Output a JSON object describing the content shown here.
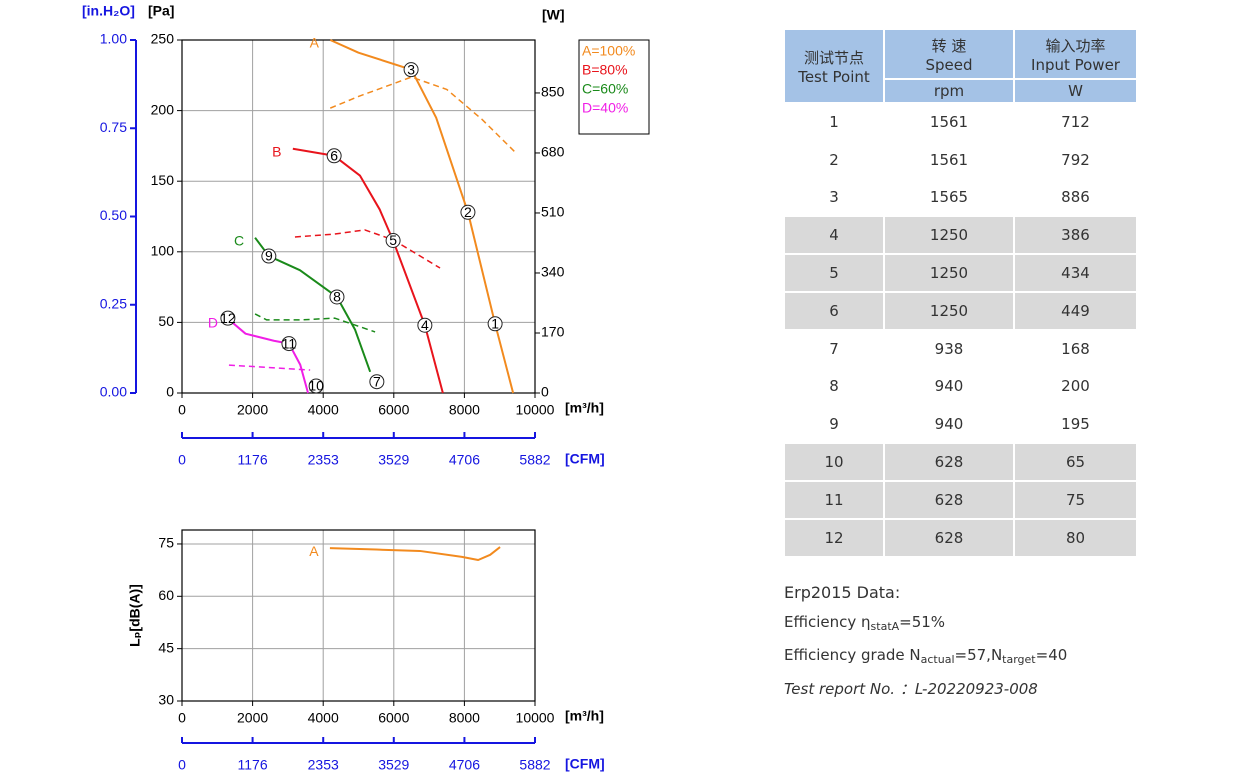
{
  "chart_data": [
    {
      "type": "line",
      "xlabel": "[m³/h]",
      "ylabel": "[Pa]",
      "y2label": "[W]",
      "y3label": "[in.H₂O]",
      "x2label": "[CFM]",
      "xlim": [
        0,
        10000
      ],
      "xticks": [
        0,
        2000,
        4000,
        6000,
        8000,
        10000
      ],
      "ylim": [
        0,
        250
      ],
      "yticks": [
        0,
        50,
        100,
        150,
        200,
        250
      ],
      "y2lim": [
        0,
        1000
      ],
      "y2ticks": [
        0,
        170,
        340,
        510,
        680,
        850
      ],
      "y3lim": [
        0,
        1
      ],
      "y3ticks": [
        {
          "value": 0,
          "label": "0.00"
        },
        0.25,
        {
          "value": 0.5,
          "label": "0.50"
        },
        0.75,
        {
          "value": 1,
          "label": "1.00"
        }
      ],
      "x2lim": [
        0,
        5882
      ],
      "x2ticks": [
        0,
        1176,
        2353,
        3529,
        4706,
        5882
      ],
      "grid": true,
      "legend": "right",
      "series": [
        {
          "name": "A=100%",
          "curve_label": "A",
          "color": "#f28a1e",
          "x": [
            4200,
            5000,
            6500,
            7200,
            8100,
            8870,
            9380
          ],
          "values": [
            250,
            241,
            229,
            195,
            128,
            49,
            0
          ]
        },
        {
          "name": "B=80%",
          "curve_label": "B",
          "color": "#e8141c",
          "x": [
            3140,
            4310,
            5040,
            5600,
            5980,
            6880,
            7390
          ],
          "values": [
            173,
            168,
            154,
            130,
            108,
            48,
            0
          ]
        },
        {
          "name": "C=60%",
          "curve_label": "C",
          "color": "#1a8a1a",
          "x": [
            2070,
            2460,
            3340,
            4390,
            4900,
            5330
          ],
          "values": [
            110,
            97,
            87,
            68,
            45,
            15
          ]
        },
        {
          "name": "D=40%",
          "curve_label": "D",
          "color": "#f01ee6",
          "x": [
            1330,
            1800,
            2600,
            3030,
            3350,
            3570
          ],
          "values": [
            52,
            42,
            37,
            35,
            20,
            0
          ]
        },
        {
          "axis": "y2",
          "dashed": true,
          "color": "#f28a1e",
          "x": [
            4200,
            5000,
            6500,
            7500,
            8500,
            9430
          ],
          "values": [
            807,
            840,
            895,
            860,
            775,
            683
          ]
        },
        {
          "axis": "y2",
          "dashed": true,
          "color": "#e8141c",
          "x": [
            3200,
            4300,
            5180,
            5980,
            7310
          ],
          "values": [
            442,
            450,
            462,
            434,
            354
          ]
        },
        {
          "axis": "y2",
          "dashed": true,
          "color": "#1a8a1a",
          "x": [
            2070,
            2400,
            3340,
            4330,
            5470
          ],
          "values": [
            224,
            207,
            207,
            212,
            173
          ]
        },
        {
          "axis": "y2",
          "dashed": true,
          "color": "#f01ee6",
          "x": [
            1330,
            2500,
            3630
          ],
          "values": [
            79,
            72,
            65
          ]
        }
      ],
      "points": [
        {
          "label": "1",
          "x": 8870,
          "y": 49
        },
        {
          "label": "2",
          "x": 8100,
          "y": 128
        },
        {
          "label": "3",
          "x": 6490,
          "y": 229
        },
        {
          "label": "4",
          "x": 6880,
          "y": 48
        },
        {
          "label": "5",
          "x": 5980,
          "y": 108
        },
        {
          "label": "6",
          "x": 4310,
          "y": 168
        },
        {
          "label": "7",
          "x": 5520,
          "y": 8
        },
        {
          "label": "8",
          "x": 4390,
          "y": 68
        },
        {
          "label": "9",
          "x": 2460,
          "y": 97
        },
        {
          "label": "10",
          "x": 3800,
          "y": 5
        },
        {
          "label": "11",
          "x": 3030,
          "y": 35
        },
        {
          "label": "12",
          "x": 1300,
          "y": 53
        }
      ]
    },
    {
      "type": "line",
      "xlabel": "[m³/h]",
      "ylabel": "Lₚ[dB(A)]",
      "x2label": "[CFM]",
      "xlim": [
        0,
        10000
      ],
      "xticks": [
        0,
        2000,
        4000,
        6000,
        8000,
        10000
      ],
      "ylim": [
        30,
        79
      ],
      "yticks": [
        30,
        45,
        60,
        75
      ],
      "x2lim": [
        0,
        5882
      ],
      "x2ticks": [
        0,
        1176,
        2353,
        3529,
        4706,
        5882
      ],
      "grid": true,
      "series": [
        {
          "curve_label": "A",
          "color": "#f28a1e",
          "x": [
            4190,
            5500,
            6740,
            7930,
            8390,
            8730,
            9010
          ],
          "values": [
            73.8,
            73.4,
            73.0,
            71.3,
            70.4,
            71.9,
            74.1
          ]
        }
      ]
    }
  ],
  "table": {
    "header": [
      [
        "测试节点",
        "Test Point"
      ],
      [
        "转 速",
        "Speed"
      ],
      [
        "输入功率",
        "Input Power"
      ]
    ],
    "units": [
      "rpm",
      "W"
    ],
    "rows": [
      {
        "cells": [
          1,
          1561,
          712
        ],
        "shaded": false
      },
      {
        "cells": [
          2,
          1561,
          792
        ],
        "shaded": false
      },
      {
        "cells": [
          3,
          1565,
          886
        ],
        "shaded": false
      },
      {
        "cells": [
          4,
          1250,
          386
        ],
        "shaded": true
      },
      {
        "cells": [
          5,
          1250,
          434
        ],
        "shaded": true
      },
      {
        "cells": [
          6,
          1250,
          449
        ],
        "shaded": true
      },
      {
        "cells": [
          7,
          938,
          168
        ],
        "shaded": false
      },
      {
        "cells": [
          8,
          940,
          200
        ],
        "shaded": false
      },
      {
        "cells": [
          9,
          940,
          195
        ],
        "shaded": false
      },
      {
        "cells": [
          10,
          628,
          65
        ],
        "shaded": true
      },
      {
        "cells": [
          11,
          628,
          75
        ],
        "shaded": true
      },
      {
        "cells": [
          12,
          628,
          80
        ],
        "shaded": true
      }
    ]
  },
  "erp": {
    "title": "Erp2015  Data:",
    "efficiency": [
      "Efficiency η",
      "statA",
      "=51%"
    ],
    "grade": [
      "Efficiency grade N",
      "actual",
      "=57,N",
      "target",
      "=40"
    ],
    "report": "Test report No. ：L-20220923-008"
  }
}
